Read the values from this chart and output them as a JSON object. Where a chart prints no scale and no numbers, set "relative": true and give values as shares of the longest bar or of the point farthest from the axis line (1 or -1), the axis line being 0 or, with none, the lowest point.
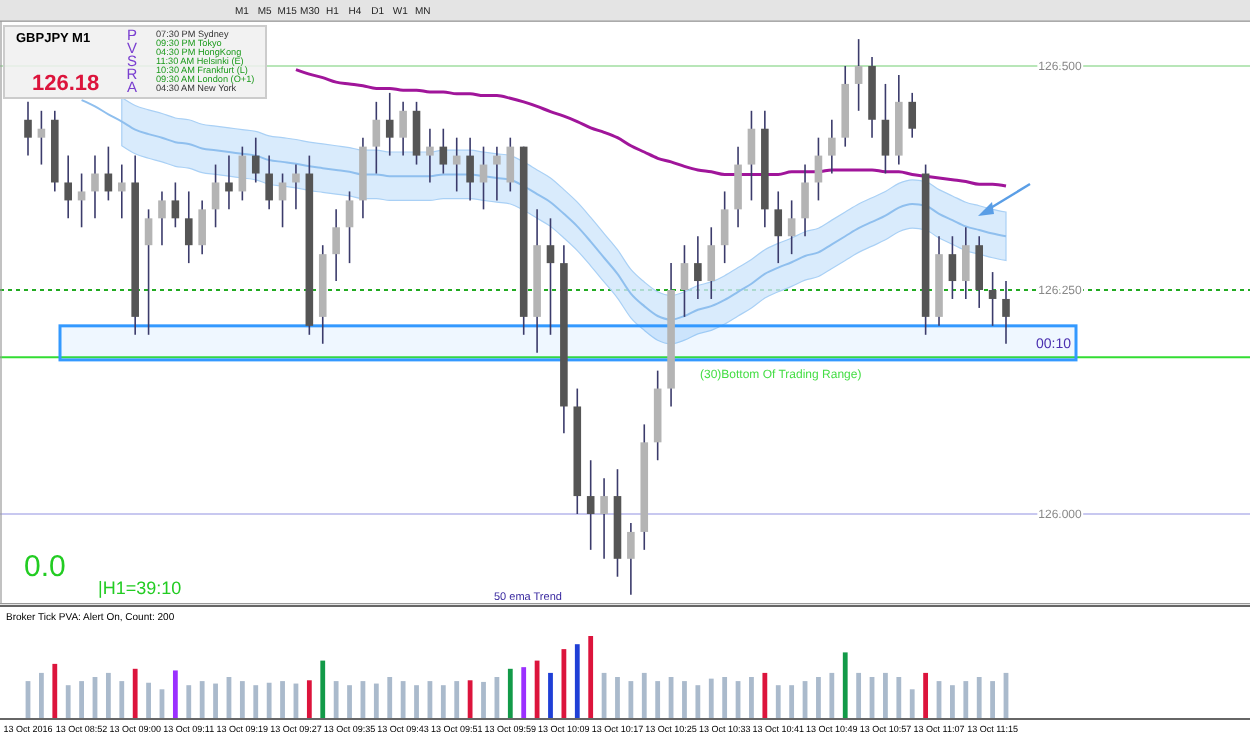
{
  "chart_data": [
    {
      "type": "candlestick",
      "tick_labels": "y",
      "categories": [
        null,
        null,
        null,
        null,
        null,
        null,
        null,
        null,
        null,
        null,
        null,
        null,
        null,
        null,
        null,
        null,
        null,
        null,
        null,
        null,
        null,
        null,
        null,
        null,
        null,
        null,
        null,
        null,
        null,
        null,
        null,
        null,
        null,
        null,
        null,
        null,
        null,
        null,
        null,
        null,
        null,
        null,
        null,
        null,
        null,
        null,
        null,
        null,
        null,
        null,
        null,
        null,
        null,
        null,
        null,
        null,
        null,
        null,
        null,
        null,
        null,
        null,
        null,
        null,
        null,
        null,
        null,
        null,
        null,
        null,
        null,
        null,
        null,
        null
      ],
      "ohlc": [
        [
          126.44,
          126.46,
          126.4,
          126.42
        ],
        [
          126.42,
          126.45,
          126.39,
          126.43
        ],
        [
          126.44,
          126.45,
          126.36,
          126.37
        ],
        [
          126.37,
          126.4,
          126.33,
          126.35
        ],
        [
          126.35,
          126.38,
          126.32,
          126.36
        ],
        [
          126.36,
          126.4,
          126.33,
          126.38
        ],
        [
          126.38,
          126.41,
          126.35,
          126.36
        ],
        [
          126.36,
          126.39,
          126.33,
          126.37
        ],
        [
          126.37,
          126.4,
          126.2,
          126.22
        ],
        [
          126.3,
          126.34,
          126.2,
          126.33
        ],
        [
          126.33,
          126.36,
          126.3,
          126.35
        ],
        [
          126.35,
          126.37,
          126.32,
          126.33
        ],
        [
          126.33,
          126.36,
          126.28,
          126.3
        ],
        [
          126.3,
          126.35,
          126.29,
          126.34
        ],
        [
          126.34,
          126.39,
          126.32,
          126.37
        ],
        [
          126.37,
          126.4,
          126.34,
          126.36
        ],
        [
          126.36,
          126.41,
          126.35,
          126.4
        ],
        [
          126.4,
          126.42,
          126.37,
          126.38
        ],
        [
          126.38,
          126.4,
          126.34,
          126.35
        ],
        [
          126.35,
          126.38,
          126.32,
          126.37
        ],
        [
          126.37,
          126.39,
          126.34,
          126.38
        ],
        [
          126.38,
          126.4,
          126.2,
          126.21
        ],
        [
          126.22,
          126.3,
          126.19,
          126.29
        ],
        [
          126.29,
          126.34,
          126.26,
          126.32
        ],
        [
          126.32,
          126.36,
          126.28,
          126.35
        ],
        [
          126.35,
          126.42,
          126.33,
          126.41
        ],
        [
          126.41,
          126.46,
          126.38,
          126.44
        ],
        [
          126.44,
          126.47,
          126.4,
          126.42
        ],
        [
          126.42,
          126.46,
          126.4,
          126.45
        ],
        [
          126.45,
          126.46,
          126.39,
          126.4
        ],
        [
          126.4,
          126.43,
          126.37,
          126.41
        ],
        [
          126.41,
          126.43,
          126.38,
          126.39
        ],
        [
          126.39,
          126.42,
          126.36,
          126.4
        ],
        [
          126.4,
          126.42,
          126.35,
          126.37
        ],
        [
          126.37,
          126.41,
          126.34,
          126.39
        ],
        [
          126.39,
          126.41,
          126.35,
          126.4
        ],
        [
          126.37,
          126.42,
          126.36,
          126.41
        ],
        [
          126.41,
          126.41,
          126.2,
          126.22
        ],
        [
          126.22,
          126.34,
          126.18,
          126.3
        ],
        [
          126.3,
          126.33,
          126.2,
          126.28
        ],
        [
          126.28,
          126.3,
          126.09,
          126.12
        ],
        [
          126.12,
          126.14,
          126.0,
          126.02
        ],
        [
          126.02,
          126.06,
          125.96,
          126.0
        ],
        [
          126.0,
          126.04,
          125.95,
          126.02
        ],
        [
          126.02,
          126.05,
          125.93,
          125.95
        ],
        [
          125.95,
          125.99,
          125.91,
          125.98
        ],
        [
          125.98,
          126.1,
          125.96,
          126.08
        ],
        [
          126.08,
          126.16,
          126.06,
          126.14
        ],
        [
          126.14,
          126.28,
          126.12,
          126.25
        ],
        [
          126.25,
          126.3,
          126.22,
          126.28
        ],
        [
          126.28,
          126.31,
          126.24,
          126.26
        ],
        [
          126.26,
          126.32,
          126.24,
          126.3
        ],
        [
          126.3,
          126.36,
          126.28,
          126.34
        ],
        [
          126.34,
          126.41,
          126.32,
          126.39
        ],
        [
          126.39,
          126.45,
          126.35,
          126.43
        ],
        [
          126.43,
          126.45,
          126.32,
          126.34
        ],
        [
          126.34,
          126.36,
          126.28,
          126.31
        ],
        [
          126.31,
          126.35,
          126.29,
          126.33
        ],
        [
          126.33,
          126.39,
          126.31,
          126.37
        ],
        [
          126.37,
          126.42,
          126.35,
          126.4
        ],
        [
          126.4,
          126.44,
          126.38,
          126.42
        ],
        [
          126.42,
          126.5,
          126.41,
          126.48
        ],
        [
          126.48,
          126.53,
          126.45,
          126.5
        ],
        [
          126.5,
          126.51,
          126.42,
          126.44
        ],
        [
          126.44,
          126.48,
          126.38,
          126.4
        ],
        [
          126.4,
          126.49,
          126.39,
          126.46
        ],
        [
          126.46,
          126.47,
          126.42,
          126.43
        ],
        [
          126.38,
          126.39,
          126.2,
          126.22
        ],
        [
          126.22,
          126.31,
          126.21,
          126.29
        ],
        [
          126.29,
          126.31,
          126.24,
          126.26
        ],
        [
          126.26,
          126.32,
          126.24,
          126.3
        ],
        [
          126.3,
          126.31,
          126.23,
          126.25
        ],
        [
          126.25,
          126.27,
          126.21,
          126.24
        ],
        [
          126.24,
          126.26,
          126.19,
          126.22
        ]
      ],
      "series": [
        {
          "type": "line",
          "color": "#8fbfee",
          "values": [
            null,
            null,
            null,
            null,
            126.462,
            126.455,
            126.446,
            126.438,
            126.429,
            126.424,
            126.42,
            126.415,
            126.413,
            126.408,
            126.406,
            126.404,
            126.402,
            126.4,
            126.395,
            126.393,
            126.391,
            126.388,
            126.386,
            126.384,
            126.382,
            126.379,
            126.379,
            126.377,
            126.377,
            126.377,
            126.377,
            126.379,
            126.379,
            126.379,
            126.377,
            126.375,
            126.373,
            126.366,
            126.357,
            126.348,
            126.335,
            126.321,
            126.304,
            126.286,
            126.268,
            126.246,
            126.232,
            126.221,
            126.217,
            126.221,
            126.228,
            126.232,
            126.239,
            126.248,
            126.257,
            126.268,
            126.275,
            126.281,
            126.288,
            126.292,
            126.301,
            126.31,
            126.319,
            126.326,
            126.333,
            126.342,
            126.346,
            126.344,
            126.335,
            126.328,
            126.321,
            126.317,
            126.313,
            126.31
          ],
          "lower": [
            null,
            null,
            null,
            null,
            null,
            null,
            null,
            126.411,
            126.402,
            126.397,
            126.393,
            126.388,
            126.386,
            126.381,
            126.379,
            126.377,
            126.375,
            126.373,
            126.368,
            126.366,
            126.364,
            126.361,
            126.359,
            126.357,
            126.355,
            126.352,
            126.352,
            126.35,
            126.35,
            126.35,
            126.35,
            126.352,
            126.352,
            126.352,
            126.35,
            126.348,
            126.346,
            126.339,
            126.33,
            126.321,
            126.308,
            126.294,
            126.277,
            126.259,
            126.241,
            126.219,
            126.205,
            126.194,
            126.19,
            126.194,
            126.201,
            126.205,
            126.212,
            126.221,
            126.23,
            126.241,
            126.248,
            126.254,
            126.261,
            126.265,
            126.274,
            126.283,
            126.292,
            126.299,
            126.306,
            126.315,
            126.319,
            126.317,
            126.308,
            126.301,
            126.294,
            126.29,
            126.286,
            126.283
          ],
          "upper": [
            null,
            null,
            null,
            null,
            null,
            null,
            null,
            126.465,
            126.456,
            126.451,
            126.447,
            126.442,
            126.44,
            126.435,
            126.433,
            126.431,
            126.429,
            126.427,
            126.422,
            126.42,
            126.418,
            126.415,
            126.413,
            126.411,
            126.409,
            126.406,
            126.406,
            126.404,
            126.404,
            126.404,
            126.404,
            126.406,
            126.406,
            126.406,
            126.404,
            126.402,
            126.4,
            126.393,
            126.384,
            126.375,
            126.362,
            126.348,
            126.331,
            126.313,
            126.295,
            126.273,
            126.259,
            126.248,
            126.244,
            126.248,
            126.255,
            126.259,
            126.266,
            126.275,
            126.284,
            126.295,
            126.302,
            126.308,
            126.315,
            126.319,
            126.328,
            126.337,
            126.346,
            126.353,
            126.36,
            126.369,
            126.373,
            126.371,
            126.362,
            126.355,
            126.348,
            126.344,
            126.34,
            126.337
          ]
        },
        {
          "type": "line",
          "color": "#a0159a",
          "values": [
            null,
            null,
            null,
            null,
            null,
            null,
            null,
            null,
            null,
            null,
            null,
            null,
            null,
            null,
            null,
            null,
            null,
            null,
            null,
            null,
            126.496,
            126.491,
            126.487,
            126.482,
            126.48,
            126.478,
            126.475,
            126.475,
            126.473,
            126.473,
            126.471,
            126.471,
            126.469,
            126.469,
            126.467,
            126.467,
            126.464,
            126.46,
            126.455,
            126.449,
            126.444,
            126.438,
            126.431,
            126.426,
            126.42,
            126.411,
            126.404,
            126.397,
            126.393,
            126.388,
            126.384,
            126.382,
            126.379,
            126.379,
            126.379,
            126.379,
            126.379,
            126.382,
            126.382,
            126.382,
            126.384,
            126.384,
            126.384,
            126.384,
            126.382,
            126.382,
            126.379,
            126.377,
            126.375,
            126.373,
            126.371,
            126.368,
            126.368,
            126.366
          ]
        }
      ],
      "ylim": [
        125.9,
        126.55
      ],
      "yticks": [
        {
          "value": 126.0,
          "label": "126.000"
        },
        {
          "value": 126.25,
          "label": "126.250"
        },
        {
          "value": 126.5,
          "label": "126.500"
        }
      ],
      "ref_lines": [
        {
          "axis": "y",
          "value": 126.5,
          "color": "#b8e6b8"
        },
        {
          "axis": "y",
          "value": 126.25,
          "color": "#22aa22",
          "line_style": "dotted"
        },
        {
          "axis": "y",
          "value": 126.0,
          "color": "#c8c8f0"
        },
        {
          "axis": "y",
          "value": 126.175,
          "color": "#33dd33"
        }
      ],
      "bands": [
        {
          "axis": "y",
          "from": 126.172,
          "to": 126.21,
          "label": "(30)Bottom Of Trading Range)",
          "color": "#3399ff"
        }
      ],
      "annotations": [
        "GBPJPY  M1",
        "126.18",
        "PVSRA",
        "07:30 PM  Sydney",
        "09:30 PM  Tokyo",
        "04:30 PM  HongKong",
        "11:30 AM  Helsinki (E)",
        "10:30 AM  Frankfurt (L)",
        "09:30 AM  London (O+1)",
        "04:30 AM  New York",
        "00:10",
        "0.0",
        "|H1=39:10",
        "50 ema Trend",
        "M1",
        "M5",
        "M15",
        "M30",
        "H1",
        "H4",
        "D1",
        "W1",
        "MN"
      ]
    },
    {
      "type": "bar",
      "relative": true,
      "tick_labels": "x",
      "title": "Broker Tick PVA:   Alert On,  Count: 200",
      "categories": [
        "13 Oct 2016",
        null,
        null,
        null,
        "13 Oct 08:52",
        null,
        null,
        null,
        "13 Oct 09:00",
        null,
        null,
        null,
        "13 Oct 09:11",
        null,
        null,
        null,
        "13 Oct 09:19",
        null,
        null,
        null,
        "13 Oct 09:27",
        null,
        null,
        null,
        "13 Oct 09:35",
        null,
        null,
        null,
        "13 Oct 09:43",
        null,
        null,
        null,
        "13 Oct 09:51",
        null,
        null,
        null,
        "13 Oct 09:59",
        null,
        null,
        null,
        "13 Oct 10:09",
        null,
        null,
        null,
        "13 Oct 10:17",
        null,
        null,
        null,
        "13 Oct 10:25",
        null,
        null,
        null,
        "13 Oct 10:33",
        null,
        null,
        null,
        "13 Oct 10:41",
        null,
        null,
        null,
        "13 Oct 10:49",
        null,
        null,
        null,
        "13 Oct 10:57",
        null,
        null,
        null,
        "13 Oct 11:07",
        null,
        null,
        null,
        "13 Oct 11:15",
        null
      ],
      "values": [
        0.45,
        0.55,
        0.66,
        0.4,
        0.45,
        0.5,
        0.55,
        0.45,
        0.6,
        0.43,
        0.35,
        0.58,
        0.4,
        0.45,
        0.42,
        0.5,
        0.45,
        0.4,
        0.43,
        0.45,
        0.42,
        0.46,
        0.7,
        0.45,
        0.4,
        0.45,
        0.42,
        0.5,
        0.45,
        0.4,
        0.45,
        0.4,
        0.45,
        0.46,
        0.44,
        0.5,
        0.6,
        0.62,
        0.7,
        0.55,
        0.84,
        0.9,
        1,
        0.55,
        0.5,
        0.45,
        0.55,
        0.45,
        0.5,
        0.45,
        0.4,
        0.48,
        0.5,
        0.45,
        0.5,
        0.55,
        0.4,
        0.4,
        0.45,
        0.5,
        0.55,
        0.8,
        0.55,
        0.5,
        0.55,
        0.5,
        0.35,
        0.55,
        0.45,
        0.4,
        0.45,
        0.5,
        0.45,
        0.55
      ],
      "colors": [
        "#aabacc",
        "#aabacc",
        "#dc143c",
        "#aabacc",
        "#aabacc",
        "#aabacc",
        "#aabacc",
        "#aabacc",
        "#dc143c",
        "#aabacc",
        "#aabacc",
        "#9b30ff",
        "#aabacc",
        "#aabacc",
        "#aabacc",
        "#aabacc",
        "#aabacc",
        "#aabacc",
        "#aabacc",
        "#aabacc",
        "#aabacc",
        "#dc143c",
        "#129a48",
        "#aabacc",
        "#aabacc",
        "#aabacc",
        "#aabacc",
        "#aabacc",
        "#aabacc",
        "#aabacc",
        "#aabacc",
        "#aabacc",
        "#aabacc",
        "#dc143c",
        "#aabacc",
        "#aabacc",
        "#129a48",
        "#9b30ff",
        "#dc143c",
        "#1f3fd6",
        "#dc143c",
        "#1f3fd6",
        "#dc143c",
        "#aabacc",
        "#aabacc",
        "#aabacc",
        "#aabacc",
        "#aabacc",
        "#aabacc",
        "#aabacc",
        "#aabacc",
        "#aabacc",
        "#aabacc",
        "#aabacc",
        "#aabacc",
        "#dc143c",
        "#aabacc",
        "#aabacc",
        "#aabacc",
        "#aabacc",
        "#aabacc",
        "#129a48",
        "#aabacc",
        "#aabacc",
        "#aabacc",
        "#aabacc",
        "#aabacc",
        "#dc143c",
        "#aabacc",
        "#aabacc",
        "#aabacc",
        "#aabacc",
        "#aabacc",
        "#aabacc"
      ]
    }
  ]
}
